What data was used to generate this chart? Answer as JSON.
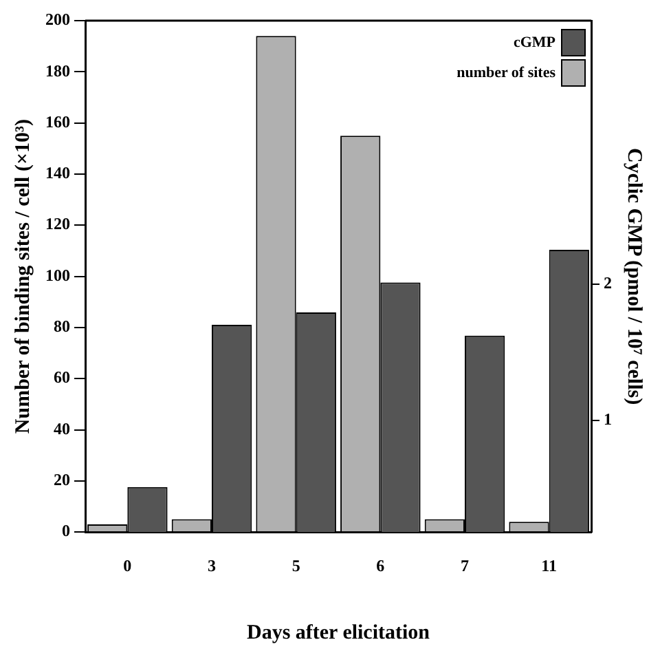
{
  "chart_data": {
    "type": "bar",
    "xlabel": "Days after elicitation",
    "ylabel": "Number of binding sites / cell (×10³)",
    "y2label": "Cyclic GMP (pmol / 10⁷ cells)",
    "categories": [
      "0",
      "3",
      "5",
      "6",
      "7",
      "11"
    ],
    "series": [
      {
        "name": "number of sites",
        "color": "#b0b0b0",
        "values": [
          3,
          5,
          194,
          155,
          5,
          4
        ]
      },
      {
        "name": "cGMP",
        "color": "#555555",
        "axis": "y2",
        "values": [
          0.51,
          1.7,
          1.79,
          2.01,
          1.62,
          2.25
        ]
      }
    ],
    "ylim": [
      0,
      200
    ],
    "yticks": [
      0,
      20,
      40,
      60,
      80,
      100,
      120,
      140,
      160,
      180,
      200
    ],
    "y2lim": [
      0.18,
      3.93
    ],
    "y2ticks": [
      1,
      2
    ],
    "grid": false,
    "legend": "top right"
  }
}
